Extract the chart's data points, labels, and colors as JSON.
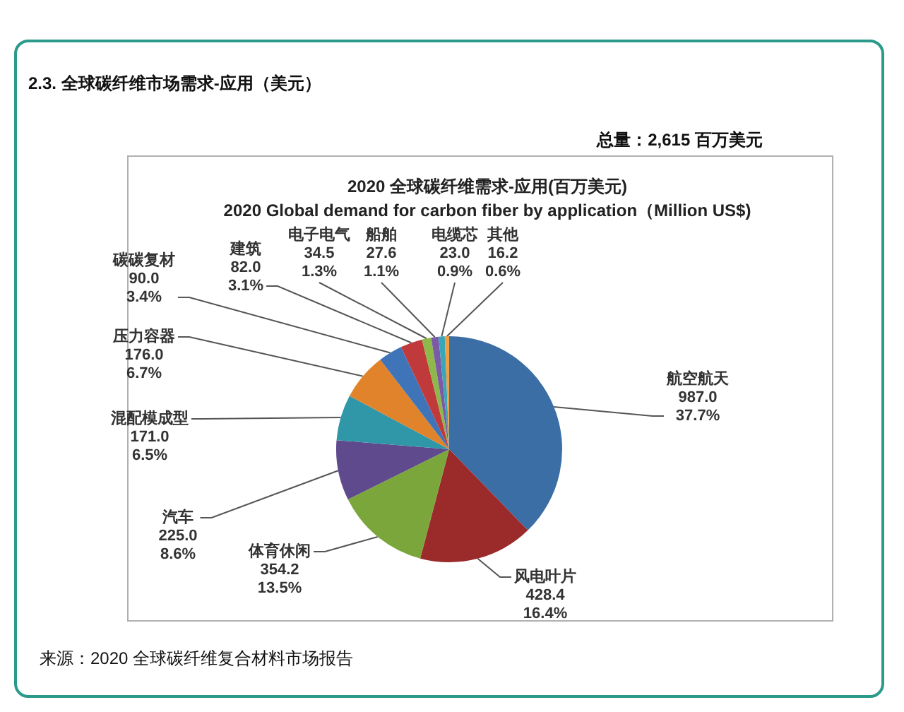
{
  "chart_data": {
    "type": "pie",
    "title": "2020 全球碳纤维需求-应用(百万美元)",
    "subtitle": "2020 Global demand for carbon fiber by application（Million US$)",
    "annotations": [
      "2.3. 全球碳纤维市场需求-应用（美元）",
      "总量：2,615 百万美元",
      "来源：2020 全球碳纤维复合材料市场报告"
    ],
    "categories": [
      "航空航天",
      "风电叶片",
      "体育休闲",
      "汽车",
      "混配模成型",
      "压力容器",
      "碳碳复材",
      "建筑",
      "电子电气",
      "船舶",
      "电缆芯",
      "其他"
    ],
    "values": [
      987.0,
      428.4,
      354.2,
      225.0,
      171.0,
      176.0,
      90.0,
      82.0,
      34.5,
      27.6,
      23.0,
      16.2
    ],
    "value_labels": [
      "987.0\n37.7%",
      "428.4\n16.4%",
      "354.2\n13.5%",
      "225.0\n8.6%",
      "171.0\n6.5%",
      "176.0\n6.7%",
      "90.0\n3.4%",
      "82.0\n3.1%",
      "34.5\n1.3%",
      "27.6\n1.1%",
      "23.0\n0.9%",
      "16.2\n0.6%"
    ],
    "colors": [
      "#3a6ea5",
      "#9b2a2a",
      "#7aa63c",
      "#5e4a8c",
      "#2f97a8",
      "#e0832a",
      "#3f74b8",
      "#c0393b",
      "#8db84a",
      "#7b5aa6",
      "#3aa6b8",
      "#f0a040"
    ]
  }
}
